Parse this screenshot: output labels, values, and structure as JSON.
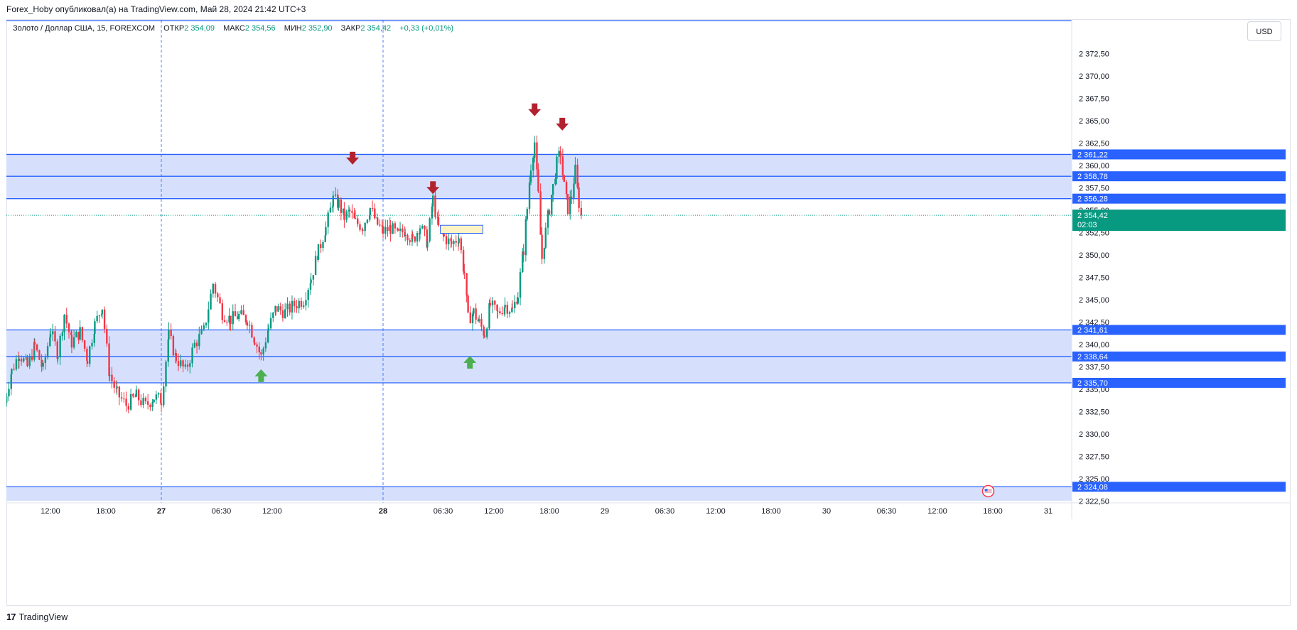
{
  "header": {
    "publisher": "Forex_Hoby опубликовал(а) на TradingView.com, Май 28, 2024 21:42 UTC+3"
  },
  "legend": {
    "symbol": "Золото / Доллар США, 15, FOREXCOM",
    "open_label": "ОТКР",
    "open": "2 354,09",
    "high_label": "МАКС",
    "high": "2 354,56",
    "low_label": "МИН",
    "low": "2 352,90",
    "close_label": "ЗАКР",
    "close": "2 354,42",
    "change": "+0,33 (+0,01%)"
  },
  "currency_button": {
    "label": "USD"
  },
  "footer": {
    "brand": "TradingView",
    "logo_glyph": "17"
  },
  "colors": {
    "up": "#089981",
    "down": "#f23645",
    "zone": "#d6e0fc",
    "level": "#2962ff",
    "arrow_down": "#b2222e",
    "arrow_up": "#4caf50",
    "box_fill": "#fff3c4"
  },
  "chart_data": {
    "type": "candlestick",
    "title": "Золото / Доллар США, 15, FOREXCOM",
    "ylim": [
      2322.5,
      2375.0
    ],
    "y_ticks": [
      "2 372,50",
      "2 370,00",
      "2 367,50",
      "2 365,00",
      "2 362,50",
      "2 360,00",
      "2 357,50",
      "2 355,00",
      "2 352,50",
      "2 350,00",
      "2 347,50",
      "2 345,00",
      "2 342,50",
      "2 340,00",
      "2 337,50",
      "2 335,00",
      "2 332,50",
      "2 330,00",
      "2 327,50",
      "2 325,00",
      "2 322,50"
    ],
    "y_tick_values": [
      2372.5,
      2370,
      2367.5,
      2365,
      2362.5,
      2360,
      2357.5,
      2355,
      2352.5,
      2350,
      2347.5,
      2345,
      2342.5,
      2340,
      2337.5,
      2335,
      2332.5,
      2330,
      2327.5,
      2325,
      2322.5
    ],
    "x_ticks": [
      "12:00",
      "18:00",
      "27",
      "06:30",
      "12:00",
      "28",
      "06:30",
      "12:00",
      "18:00",
      "29",
      "06:30",
      "12:00",
      "18:00",
      "30",
      "06:30",
      "12:00",
      "18:00",
      "31"
    ],
    "x_tick_times": [
      12,
      18,
      24,
      30.5,
      36,
      48,
      54.5,
      60,
      66,
      72,
      78.5,
      84,
      90,
      96,
      102.5,
      108,
      114,
      120
    ],
    "bold_x_ticks": [
      "27",
      "28"
    ],
    "session_separators": [
      24,
      48
    ],
    "price_levels": [
      {
        "value": 2361.22,
        "label": "2 361,22"
      },
      {
        "value": 2358.78,
        "label": "2 358,78"
      },
      {
        "value": 2356.28,
        "label": "2 356,28"
      },
      {
        "value": 2341.61,
        "label": "2 341,61"
      },
      {
        "value": 2338.64,
        "label": "2 338,64"
      },
      {
        "value": 2335.7,
        "label": "2 335,70"
      },
      {
        "value": 2324.08,
        "label": "2 324,08"
      }
    ],
    "zones": [
      {
        "from": 2356.28,
        "to": 2361.22
      },
      {
        "from": 2335.7,
        "to": 2341.61
      }
    ],
    "bottom_band": {
      "from": 2322.5,
      "to": 2324.08
    },
    "current_price": {
      "value": 2354.42,
      "label": "2 354,42",
      "countdown": "02:03"
    },
    "rectangle": {
      "t_start": 54.2,
      "t_end": 58.8,
      "y_low": 2352.4,
      "y_high": 2353.3
    },
    "arrows": [
      {
        "t": 44.7,
        "y": 2360.8,
        "dir": "down"
      },
      {
        "t": 53.4,
        "y": 2357.5,
        "dir": "down"
      },
      {
        "t": 64.4,
        "y": 2366.2,
        "dir": "down"
      },
      {
        "t": 67.4,
        "y": 2364.6,
        "dir": "down"
      },
      {
        "t": 34.8,
        "y": 2336.5,
        "dir": "up"
      },
      {
        "t": 57.4,
        "y": 2338.0,
        "dir": "up"
      }
    ],
    "event_marker": {
      "t": 113.5,
      "y": 2323.6
    },
    "bar_minutes": 15,
    "t_start": 7.0,
    "path_anchors_hours_price": [
      [
        7.0,
        2333.5
      ],
      [
        7.8,
        2337
      ],
      [
        8.6,
        2339
      ],
      [
        9.5,
        2337.5
      ],
      [
        10.3,
        2339.8
      ],
      [
        11.2,
        2337.2
      ],
      [
        12.0,
        2341.5
      ],
      [
        12.8,
        2339
      ],
      [
        13.5,
        2343.4
      ],
      [
        14.3,
        2340.2
      ],
      [
        15.2,
        2341.4
      ],
      [
        16.0,
        2338.4
      ],
      [
        16.8,
        2342.2
      ],
      [
        17.6,
        2344.2
      ],
      [
        18.4,
        2336.6
      ],
      [
        19.2,
        2334.5
      ],
      [
        20.2,
        2333.2
      ],
      [
        21.3,
        2334.2
      ],
      [
        22.3,
        2333.1
      ],
      [
        23.2,
        2334.1
      ],
      [
        24.0,
        2333.8
      ],
      [
        24.8,
        2341
      ],
      [
        25.6,
        2338.5
      ],
      [
        26.6,
        2337
      ],
      [
        27.6,
        2340
      ],
      [
        28.6,
        2341.5
      ],
      [
        29.6,
        2346.8
      ],
      [
        30.6,
        2343.5
      ],
      [
        31.5,
        2342.8
      ],
      [
        32.4,
        2343.2
      ],
      [
        33.3,
        2342.8
      ],
      [
        34.1,
        2340.6
      ],
      [
        34.8,
        2338.6
      ],
      [
        35.6,
        2341.8
      ],
      [
        36.4,
        2344
      ],
      [
        37.4,
        2343.6
      ],
      [
        38.4,
        2344.4
      ],
      [
        39.4,
        2345
      ],
      [
        40.2,
        2347.4
      ],
      [
        41.0,
        2350.4
      ],
      [
        41.8,
        2353
      ],
      [
        42.6,
        2356.2
      ],
      [
        43.2,
        2355.7
      ],
      [
        43.8,
        2354.2
      ],
      [
        44.4,
        2354.8
      ],
      [
        45.0,
        2353.6
      ],
      [
        45.8,
        2353.2
      ],
      [
        46.6,
        2355.2
      ],
      [
        47.4,
        2353.4
      ],
      [
        48.0,
        2352.6
      ],
      [
        48.8,
        2353
      ],
      [
        49.6,
        2352.2
      ],
      [
        50.4,
        2352.8
      ],
      [
        51.2,
        2351.6
      ],
      [
        52.0,
        2353.2
      ],
      [
        52.8,
        2351.4
      ],
      [
        53.4,
        2356.2
      ],
      [
        54.0,
        2353
      ],
      [
        54.6,
        2352
      ],
      [
        55.4,
        2351.2
      ],
      [
        56.2,
        2352
      ],
      [
        56.8,
        2348
      ],
      [
        57.2,
        2342.8
      ],
      [
        57.8,
        2343.6
      ],
      [
        58.4,
        2342.4
      ],
      [
        59.0,
        2341.2
      ],
      [
        59.6,
        2344.4
      ],
      [
        60.4,
        2343.4
      ],
      [
        61.2,
        2344.4
      ],
      [
        62.0,
        2343.8
      ],
      [
        62.6,
        2345.6
      ],
      [
        63.2,
        2350.6
      ],
      [
        63.6,
        2355.2
      ],
      [
        64.0,
        2360
      ],
      [
        64.4,
        2362.6
      ],
      [
        64.8,
        2356.6
      ],
      [
        65.2,
        2349.6
      ],
      [
        65.6,
        2352.6
      ],
      [
        66.0,
        2355.2
      ],
      [
        66.4,
        2357.6
      ],
      [
        66.8,
        2360.2
      ],
      [
        67.2,
        2361.4
      ],
      [
        67.6,
        2357.6
      ],
      [
        68.0,
        2355.2
      ],
      [
        68.4,
        2356.6
      ],
      [
        68.8,
        2359.4
      ],
      [
        69.2,
        2355.8
      ],
      [
        69.6,
        2354.42
      ]
    ]
  }
}
